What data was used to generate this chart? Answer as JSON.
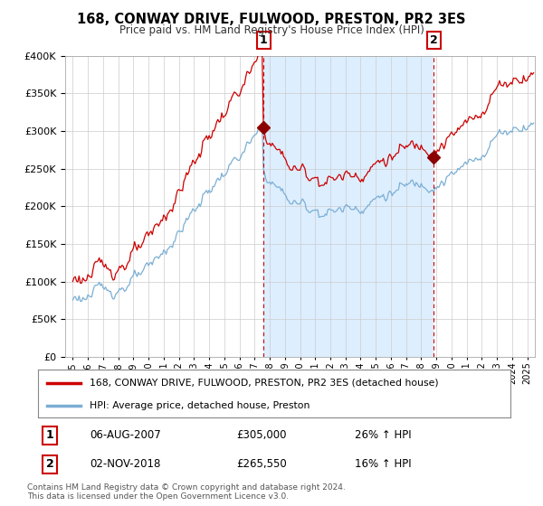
{
  "title": "168, CONWAY DRIVE, FULWOOD, PRESTON, PR2 3ES",
  "subtitle": "Price paid vs. HM Land Registry's House Price Index (HPI)",
  "legend_line1": "168, CONWAY DRIVE, FULWOOD, PRESTON, PR2 3ES (detached house)",
  "legend_line2": "HPI: Average price, detached house, Preston",
  "annotation1_label": "1",
  "annotation1_date": "06-AUG-2007",
  "annotation1_price": "£305,000",
  "annotation1_hpi": "26% ↑ HPI",
  "annotation2_label": "2",
  "annotation2_date": "02-NOV-2018",
  "annotation2_price": "£265,550",
  "annotation2_hpi": "16% ↑ HPI",
  "footer": "Contains HM Land Registry data © Crown copyright and database right 2024.\nThis data is licensed under the Open Government Licence v3.0.",
  "sale1_year": 2007.583,
  "sale1_value": 305000,
  "sale2_year": 2018.833,
  "sale2_value": 265550,
  "hpi_color": "#7bafd4",
  "price_color": "#cc0000",
  "sale_marker_color": "#8b0000",
  "highlight_color": "#ddeeff",
  "background_color": "#ffffff",
  "plot_bg_color": "#ffffff",
  "ylim_min": 0,
  "ylim_max": 400000,
  "xlim_min": 1994.5,
  "xlim_max": 2025.5
}
